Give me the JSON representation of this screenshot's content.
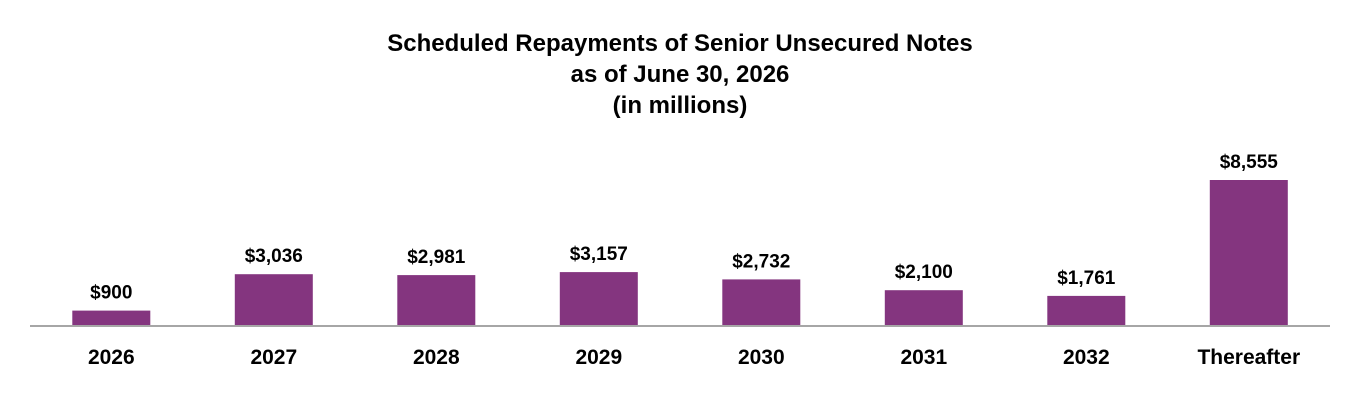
{
  "chart_data": {
    "type": "bar",
    "title_lines": [
      "Scheduled Repayments of Senior Unsecured Notes",
      "as of June 30, 2026",
      "(in millions)"
    ],
    "categories": [
      "2026",
      "2027",
      "2028",
      "2029",
      "2030",
      "2031",
      "2032",
      "Thereafter"
    ],
    "values": [
      900,
      3036,
      2981,
      3157,
      2732,
      2100,
      1761,
      8555
    ],
    "value_labels": [
      "$900",
      "$3,036",
      "$2,981",
      "$3,157",
      "$2,732",
      "$2,100",
      "$1,761",
      "$8,555"
    ],
    "ylim": [
      0,
      8555
    ],
    "grid": false,
    "legend": "none",
    "bar_color": "#84357F",
    "axis_color": "#A6A6A6"
  }
}
